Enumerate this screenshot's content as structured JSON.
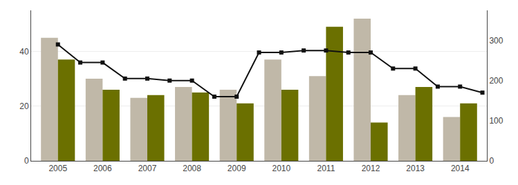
{
  "chart_data": {
    "type": "bar",
    "x": [
      2005,
      2006,
      2007,
      2008,
      2009,
      2010,
      2011,
      2012,
      2013,
      2014
    ],
    "xlim": [
      2004.4,
      2014.6
    ],
    "xticks": [
      2005,
      2006,
      2007,
      2008,
      2009,
      2010,
      2011,
      2012,
      2013,
      2014
    ],
    "ylim": [
      0,
      55
    ],
    "yticks": [
      0,
      20,
      40
    ],
    "y2lim": [
      0,
      375
    ],
    "y2ticks": [
      0,
      100,
      200,
      300
    ],
    "grid": true,
    "series": [
      {
        "type": "bar",
        "color": "#c0b8a8",
        "values": [
          45,
          30,
          23,
          27,
          26,
          37,
          31,
          52,
          24,
          16
        ]
      },
      {
        "type": "bar",
        "color": "#6b7000",
        "values": [
          37,
          26,
          24,
          25,
          21,
          26,
          49,
          14,
          27,
          21
        ]
      },
      {
        "type": "line",
        "axis": "y2",
        "color": "#111111",
        "marker": "square",
        "x": [
          2005,
          2005.5,
          2006,
          2006.5,
          2007,
          2007.5,
          2008,
          2008.5,
          2009,
          2009.5,
          2010,
          2010.5,
          2011,
          2011.5,
          2012,
          2012.5,
          2013,
          2013.5,
          2014,
          2014.5
        ],
        "values": [
          290,
          245,
          245,
          205,
          205,
          200,
          200,
          160,
          160,
          270,
          270,
          275,
          275,
          270,
          270,
          230,
          230,
          185,
          185,
          170
        ]
      }
    ]
  }
}
